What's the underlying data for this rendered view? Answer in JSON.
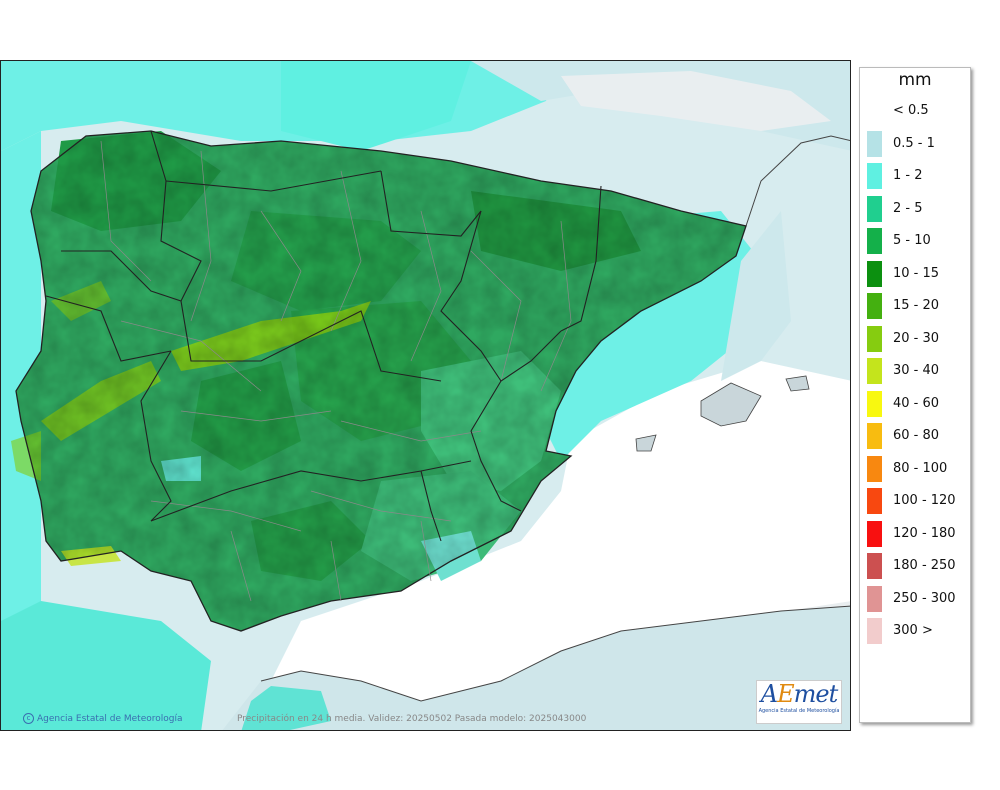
{
  "legend": {
    "unit": "mm",
    "items": [
      {
        "label": "< 0.5",
        "color": "#ffffff"
      },
      {
        "label": "0.5 - 1",
        "color": "#b5e2e6"
      },
      {
        "label": "1 - 2",
        "color": "#5ff0e1"
      },
      {
        "label": "2 - 5",
        "color": "#20cf8f"
      },
      {
        "label": "5 - 10",
        "color": "#14b04a"
      },
      {
        "label": "10 - 15",
        "color": "#0c9010"
      },
      {
        "label": "15 - 20",
        "color": "#44b010"
      },
      {
        "label": "20 - 30",
        "color": "#86cc10"
      },
      {
        "label": "30 - 40",
        "color": "#c4e41c"
      },
      {
        "label": "40 - 60",
        "color": "#f8f810"
      },
      {
        "label": "60 - 80",
        "color": "#f8bc10"
      },
      {
        "label": "80 - 100",
        "color": "#f88810"
      },
      {
        "label": "100 - 120",
        "color": "#f84810"
      },
      {
        "label": "120 - 180",
        "color": "#f81010"
      },
      {
        "label": "180 - 250",
        "color": "#cc5050"
      },
      {
        "label": "250 - 300",
        "color": "#e09494"
      },
      {
        "label": "300 >",
        "color": "#f2cccc"
      }
    ]
  },
  "footer": {
    "credit": "Agencia Estatal de Meteorología",
    "caption": "Precipitación en 24 h media. Validez: 20250502 Pasada modelo: 2025043000"
  },
  "logo": {
    "word_a": "A",
    "word_e": "E",
    "word_met": "met",
    "subtitle": "Agencia Estatal de Meteorología"
  },
  "colors": {
    "sea_dry": "#ffffff",
    "land_base": "#2fa860",
    "land_wet": "#239a4c",
    "border": "#222222",
    "province": "#8a8a8a"
  }
}
